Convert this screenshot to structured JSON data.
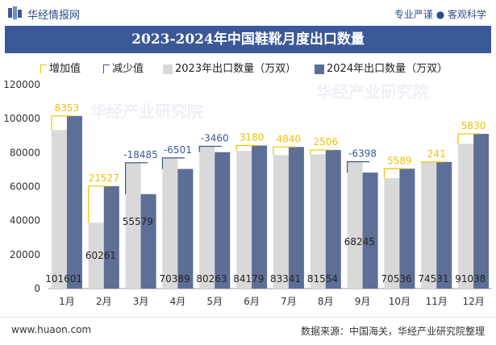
{
  "header": {
    "brand": "华经情报网",
    "tagline": "专业严谨 ● 客观科学"
  },
  "watermarks": [
    "华经产业研究院",
    "华经产业研究院"
  ],
  "legend": {
    "increase": "增加值",
    "decrease": "减少值",
    "s2023": "2023年出口数量（万双）",
    "s2024": "2024年出口数量（万双）"
  },
  "footer": {
    "url": "www.huaon.com",
    "source": "数据来源：中国海关，华经产业研究院整理"
  },
  "colors": {
    "s2023": "#d9d9d9",
    "s2024": "#5d6e97",
    "increase": "#f0c000",
    "decrease": "#3b5898",
    "title_bg": "#3b5898"
  },
  "chart_data": {
    "type": "bar",
    "title": "2023-2024年中国鞋靴月度出口数量",
    "categories": [
      "1月",
      "2月",
      "3月",
      "4月",
      "5月",
      "6月",
      "7月",
      "8月",
      "9月",
      "10月",
      "11月",
      "12月"
    ],
    "series": [
      {
        "name": "2023年出口数量（万双）",
        "values": [
          93248,
          38734,
          74064,
          76890,
          83723,
          80999,
          78501,
          79048,
          74643,
          64947,
          74290,
          85208
        ]
      },
      {
        "name": "2024年出口数量（万双）",
        "values": [
          101601,
          60261,
          55579,
          70389,
          80263,
          84179,
          83341,
          81554,
          68245,
          70536,
          74531,
          91038
        ]
      }
    ],
    "change": {
      "labels": [
        "8353",
        "21527",
        "-18485",
        "-6501",
        "-3460",
        "3180",
        "4840",
        "2506",
        "-6398",
        "5589",
        "241",
        "5830"
      ],
      "values": [
        8353,
        21527,
        -18485,
        -6501,
        -3460,
        3180,
        4840,
        2506,
        -6398,
        5589,
        241,
        5830
      ]
    },
    "yticks": [
      "0",
      "20000",
      "40000",
      "60000",
      "80000",
      "100000",
      "120000"
    ],
    "ylim": [
      0,
      120000
    ],
    "legend_position": "top",
    "grid": false
  }
}
